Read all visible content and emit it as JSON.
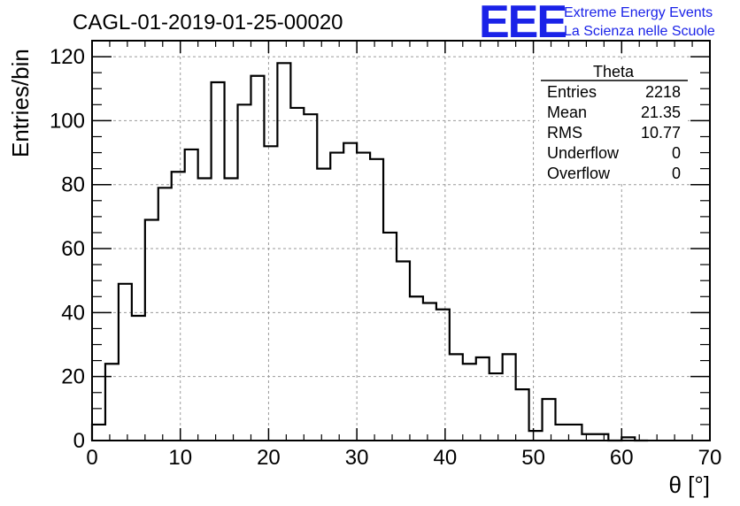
{
  "chart_title": "CAGL-01-2019-01-25-00020",
  "logo": {
    "mark": "EEE",
    "line1": "Extreme Energy Events",
    "line2": "La Scienza nelle Scuole",
    "color": "#1a22e8"
  },
  "stats_box": {
    "title": "Theta",
    "rows": [
      {
        "label": "Entries",
        "value": "2218"
      },
      {
        "label": "Mean",
        "value": "21.35"
      },
      {
        "label": "RMS",
        "value": "10.77"
      },
      {
        "label": "Underflow",
        "value": "0"
      },
      {
        "label": "Overflow",
        "value": "0"
      }
    ]
  },
  "chart_data": {
    "type": "bar",
    "style": "step-histogram",
    "title": "CAGL-01-2019-01-25-00020",
    "xlabel": "θ [°]",
    "ylabel": "Entries/bin",
    "xlim": [
      0,
      70
    ],
    "ylim": [
      0,
      125
    ],
    "xticks": [
      0,
      10,
      20,
      30,
      40,
      50,
      60,
      70
    ],
    "yticks": [
      0,
      20,
      40,
      60,
      80,
      100,
      120
    ],
    "grid": true,
    "bin_width": 1.5,
    "bin_edges_start": 0,
    "values": [
      5,
      24,
      49,
      39,
      69,
      79,
      84,
      91,
      82,
      112,
      82,
      105,
      114,
      92,
      118,
      104,
      102,
      85,
      90,
      93,
      90,
      88,
      65,
      56,
      45,
      43,
      41,
      27,
      24,
      26,
      21,
      27,
      16,
      3,
      13,
      5,
      5,
      2,
      2,
      0,
      1,
      0
    ]
  }
}
